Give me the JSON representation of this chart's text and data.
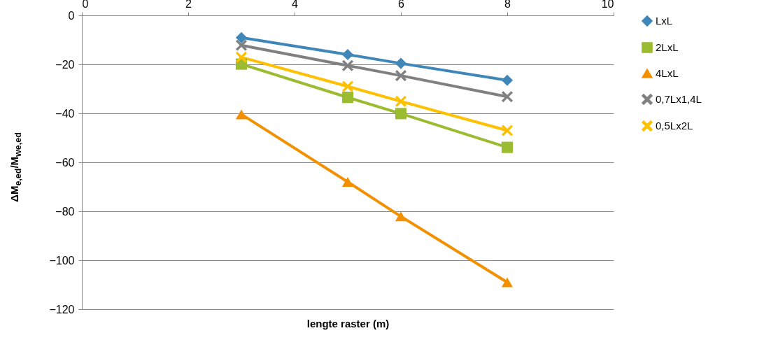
{
  "chart_data": {
    "type": "line",
    "xlabel": "lengte raster (m)",
    "ylabel": "ΔM$_{e,ed}$/M$_{we,ed}$",
    "xlim": [
      0,
      10
    ],
    "xticks": [
      0,
      2,
      4,
      6,
      8,
      10
    ],
    "ylim": [
      -120,
      0
    ],
    "yticks": [
      -120,
      -100,
      -80,
      -60,
      -40,
      -20,
      0
    ],
    "grid": "y",
    "legend": "right",
    "x": [
      3,
      5,
      6,
      8
    ],
    "series": [
      {
        "name": "LxL",
        "color": "#3f86b9",
        "marker": "diamond",
        "values": [
          -9.1,
          -16,
          -19.6,
          -26.5
        ]
      },
      {
        "name": "2LxL",
        "color": "#9bbb30",
        "marker": "square",
        "values": [
          -19.9,
          -33.5,
          -40.1,
          -53.9
        ]
      },
      {
        "name": "4LxL",
        "color": "#f39000",
        "marker": "triangle",
        "values": [
          -40.4,
          -68,
          -82.1,
          -109
        ]
      },
      {
        "name": "0,7Lx1,4L",
        "color": "#808080",
        "marker": "cross",
        "values": [
          -12.2,
          -20.5,
          -24.6,
          -33.2
        ]
      },
      {
        "name": "0,5Lx2L",
        "color": "#ffc000",
        "marker": "cross",
        "values": [
          -17.1,
          -29,
          -35.1,
          -47
        ]
      }
    ]
  }
}
